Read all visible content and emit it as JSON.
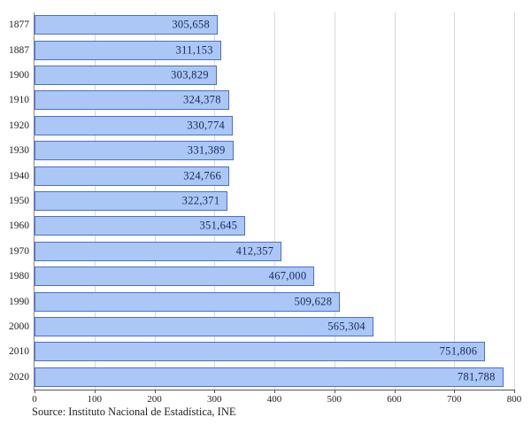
{
  "chart_data": {
    "type": "bar",
    "orientation": "horizontal",
    "title": "",
    "xlabel": "",
    "ylabel": "",
    "categories": [
      "1877",
      "1887",
      "1900",
      "1910",
      "1920",
      "1930",
      "1940",
      "1950",
      "1960",
      "1970",
      "1980",
      "1990",
      "2000",
      "2010",
      "2020"
    ],
    "values": [
      305658,
      311153,
      303829,
      324378,
      330774,
      331389,
      324766,
      322371,
      351645,
      412357,
      467000,
      509628,
      565304,
      751806,
      781788
    ],
    "value_labels": [
      "305,658",
      "311,153",
      "303,829",
      "324,378",
      "330,774",
      "331,389",
      "324,766",
      "322,371",
      "351,645",
      "412,357",
      "467,000",
      "509,628",
      "565,304",
      "751,806",
      "781,788"
    ],
    "xlim": [
      0,
      800000
    ],
    "x_tick_values": [
      0,
      100000,
      200000,
      300000,
      400000,
      500000,
      600000,
      700000,
      800000
    ],
    "x_tick_labels": [
      "0",
      "100",
      "200",
      "300",
      "400",
      "500",
      "600",
      "700",
      "800"
    ],
    "grid": true,
    "legend": "none",
    "colors": {
      "bar_fill": "#abc7f6",
      "bar_border": "#4a6fd1",
      "value_text": "#1b2a63",
      "gridline": "#d8d8d8"
    },
    "source": "Source: Instituto Nacional de Estadística, INE"
  }
}
